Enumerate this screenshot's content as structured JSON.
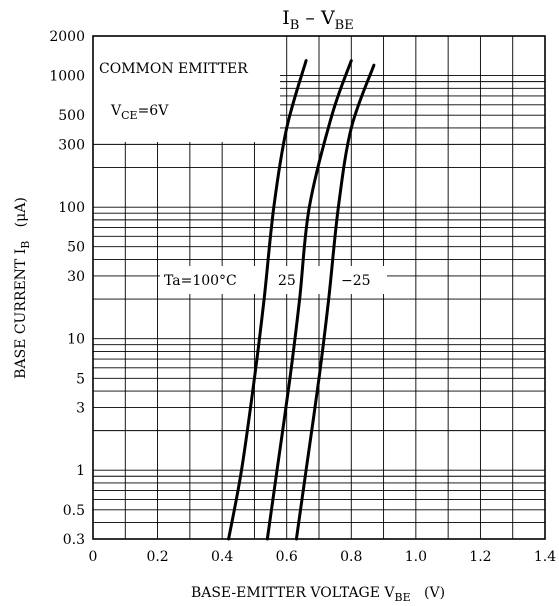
{
  "chart_data": {
    "type": "line",
    "title": {
      "main1": "I",
      "sub1": "B",
      "mid": " – V",
      "sub2": "BE"
    },
    "xlabel": {
      "main": "BASE-EMITTER VOLTAGE  V",
      "sub": "BE",
      "unit": "(V)"
    },
    "ylabel": {
      "main": "BASE CURRENT  I",
      "sub": "B",
      "unit": "(μA)"
    },
    "x_scale": "linear",
    "y_scale": "log",
    "xlim": [
      0,
      1.4
    ],
    "ylim": [
      0.3,
      2000
    ],
    "x_ticks": [
      0,
      0.2,
      0.4,
      0.6,
      0.8,
      1.0,
      1.2,
      1.4
    ],
    "x_tick_labels": [
      "0",
      "0.2",
      "0.4",
      "0.6",
      "0.8",
      "1.0",
      "1.2",
      "1.4"
    ],
    "y_ticks": [
      0.3,
      0.5,
      1,
      3,
      5,
      10,
      30,
      50,
      100,
      300,
      500,
      1000,
      2000
    ],
    "y_tick_labels": [
      "0.3",
      "0.5",
      "1",
      "3",
      "5",
      "10",
      "30",
      "50",
      "100",
      "300",
      "500",
      "1000",
      "2000"
    ],
    "grid": true,
    "legend_box": {
      "line1": "COMMON EMITTER",
      "line2_main": "V",
      "line2_sub": "CE",
      "line2_rest": "=6V"
    },
    "series": [
      {
        "name": "Ta=100°C",
        "points": [
          [
            0.42,
            0.3
          ],
          [
            0.46,
            1
          ],
          [
            0.5,
            5
          ],
          [
            0.53,
            20
          ],
          [
            0.56,
            100
          ],
          [
            0.6,
            400
          ],
          [
            0.66,
            1300
          ]
        ]
      },
      {
        "name": "25",
        "points": [
          [
            0.54,
            0.3
          ],
          [
            0.57,
            1
          ],
          [
            0.61,
            5
          ],
          [
            0.64,
            20
          ],
          [
            0.67,
            100
          ],
          [
            0.74,
            500
          ],
          [
            0.8,
            1300
          ]
        ]
      },
      {
        "name": "-25",
        "points": [
          [
            0.63,
            0.3
          ],
          [
            0.66,
            1
          ],
          [
            0.7,
            5
          ],
          [
            0.73,
            20
          ],
          [
            0.76,
            100
          ],
          [
            0.8,
            400
          ],
          [
            0.87,
            1200
          ]
        ]
      }
    ],
    "curve_labels": [
      "Ta=100°C",
      "25",
      "−25"
    ]
  }
}
